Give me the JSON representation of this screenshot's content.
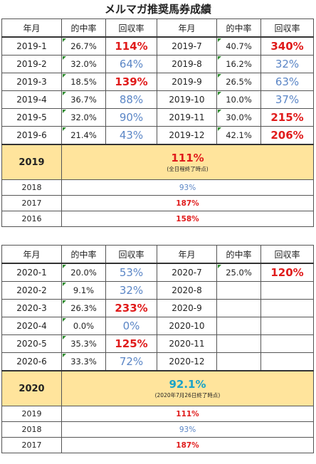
{
  "title": "メルマガ推奨馬券成績",
  "headers": {
    "month": "年月",
    "hit": "的中率",
    "ret": "回収率"
  },
  "t2019": {
    "rows": [
      {
        "lm": "2019-1",
        "lp": "26.7%",
        "lr": "114%",
        "lrc": "hi",
        "rm": "2019-7",
        "rp": "40.7%",
        "rr": "340%",
        "rrc": "hi"
      },
      {
        "lm": "2019-2",
        "lp": "32.0%",
        "lr": "64%",
        "lrc": "lo",
        "rm": "2019-8",
        "rp": "16.2%",
        "rr": "32%",
        "rrc": "lo"
      },
      {
        "lm": "2019-3",
        "lp": "18.5%",
        "lr": "139%",
        "lrc": "hi",
        "rm": "2019-9",
        "rp": "26.5%",
        "rr": "63%",
        "rrc": "lo"
      },
      {
        "lm": "2019-4",
        "lp": "36.7%",
        "lr": "88%",
        "lrc": "lo",
        "rm": "2019-10",
        "rp": "10.0%",
        "rr": "37%",
        "rrc": "lo"
      },
      {
        "lm": "2019-5",
        "lp": "32.0%",
        "lr": "90%",
        "lrc": "lo",
        "rm": "2019-11",
        "rp": "30.0%",
        "rr": "215%",
        "rrc": "hi"
      },
      {
        "lm": "2019-6",
        "lp": "21.4%",
        "lr": "43%",
        "lrc": "lo",
        "rm": "2019-12",
        "rp": "42.1%",
        "rr": "206%",
        "rrc": "hi"
      }
    ],
    "year_label": "2019",
    "year_value": "111%",
    "year_note": "(全日程終了時点)",
    "prev": [
      {
        "y": "2018",
        "v": "93%",
        "c": "lo"
      },
      {
        "y": "2017",
        "v": "187%",
        "c": "hi"
      },
      {
        "y": "2016",
        "v": "158%",
        "c": "hi"
      }
    ]
  },
  "t2020": {
    "rows": [
      {
        "lm": "2020-1",
        "lp": "20.0%",
        "lr": "53%",
        "lrc": "lo",
        "rm": "2020-7",
        "rp": "25.0%",
        "rr": "120%",
        "rrc": "hi"
      },
      {
        "lm": "2020-2",
        "lp": "9.1%",
        "lr": "32%",
        "lrc": "lo",
        "rm": "2020-8",
        "rp": "",
        "rr": "",
        "rrc": ""
      },
      {
        "lm": "2020-3",
        "lp": "26.3%",
        "lr": "233%",
        "lrc": "hi",
        "rm": "2020-9",
        "rp": "",
        "rr": "",
        "rrc": ""
      },
      {
        "lm": "2020-4",
        "lp": "0.0%",
        "lr": "0%",
        "lrc": "lo",
        "rm": "2020-10",
        "rp": "",
        "rr": "",
        "rrc": ""
      },
      {
        "lm": "2020-5",
        "lp": "35.3%",
        "lr": "125%",
        "lrc": "hi",
        "rm": "2020-11",
        "rp": "",
        "rr": "",
        "rrc": ""
      },
      {
        "lm": "2020-6",
        "lp": "33.3%",
        "lr": "72%",
        "lrc": "lo",
        "rm": "2020-12",
        "rp": "",
        "rr": "",
        "rrc": ""
      }
    ],
    "year_label": "2020",
    "year_value": "92.1%",
    "year_note": "(2020年7月26日終了時点)",
    "prev": [
      {
        "y": "2019",
        "v": "111%",
        "c": "hi"
      },
      {
        "y": "2018",
        "v": "93%",
        "c": "lo"
      },
      {
        "y": "2017",
        "v": "187%",
        "c": "hi"
      }
    ]
  }
}
